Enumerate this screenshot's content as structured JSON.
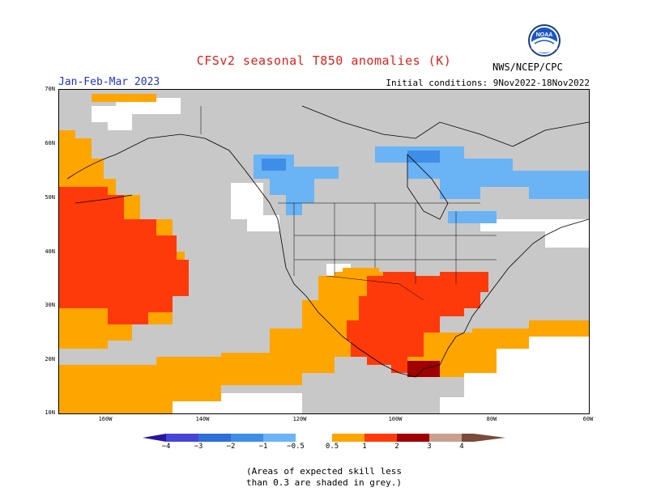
{
  "header": {
    "title": "CFSv2 seasonal T850 anomalies (K)",
    "period": "Jan-Feb-Mar 2023",
    "initial_conditions": "Initial conditions: 9Nov2022-18Nov2022",
    "agency": "NWS/NCEP/CPC",
    "logo_text": "NOAA"
  },
  "map": {
    "lat_labels": [
      "70N",
      "60N",
      "50N",
      "40N",
      "30N",
      "20N",
      "10N"
    ],
    "lon_labels": [
      "160W",
      "140W",
      "120W",
      "100W",
      "80W",
      "60W"
    ],
    "colors": {
      "skill_mask_grey": "#c8c8c8",
      "anom_0_5_to_1": "#ffa500",
      "anom_1_to_2": "#ff3a0a",
      "anom_2_to_3": "#a00000",
      "anom_neg_0_5_to_1": "#6ab3f5",
      "anom_neg_1_to_2": "#3e8ee8",
      "no_signal": "#ffffff"
    }
  },
  "legend": {
    "labels": [
      "−4",
      "−3",
      "−2",
      "−1",
      "−0.5",
      "0.5",
      "1",
      "2",
      "3",
      "4"
    ],
    "colors": [
      "#2a14a0",
      "#4646d6",
      "#2d6fd6",
      "#3e8ee8",
      "#6ab3f5",
      "#ffffff",
      "#ffa500",
      "#ff3a0a",
      "#a00000",
      "#c8a090",
      "#7a4a3a"
    ]
  },
  "note": {
    "line1": "(Areas of expected skill less",
    "line2": "than 0.3 are shaded in grey.)"
  }
}
